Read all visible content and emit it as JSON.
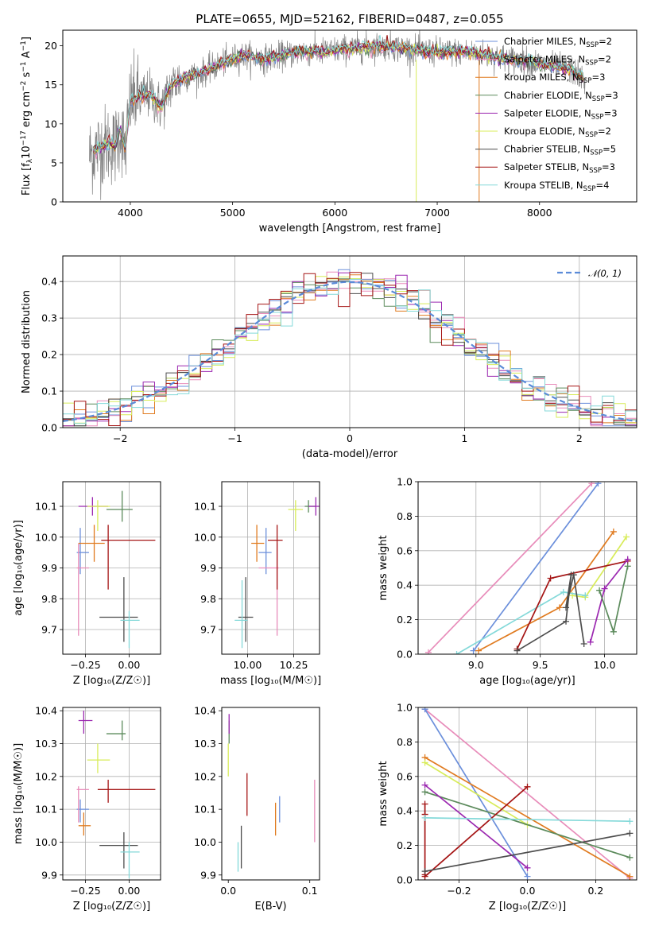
{
  "figure": {
    "title": "PLATE=0655, MJD=52162, FIBERID=0487, z=0.055",
    "colors": {
      "palette": [
        "#6b8fdb",
        "#e88cba",
        "#e07b20",
        "#5b8a5b",
        "#9b27b0",
        "#d8ec5a",
        "#4d4d4d",
        "#a51515",
        "#84d9d9"
      ],
      "spectrum_data": "#808080",
      "grid": "#b0b0b0"
    }
  },
  "chart_data": [
    {
      "id": "spectrum",
      "type": "line",
      "xlabel": "wavelength [Angstrom, rest frame]",
      "ylabel": "Flux [f_λ10^-17 erg cm^-2 s^-1 A^-1]",
      "xlim": [
        3340,
        8950
      ],
      "ylim": [
        0,
        22
      ],
      "xticks": [
        4000,
        5000,
        6000,
        7000,
        8000
      ],
      "yticks": [
        0,
        5,
        10,
        15,
        20
      ],
      "grid": false,
      "legend_position": "top-right",
      "continuum_knots": {
        "x": [
          3600,
          3700,
          3800,
          3850,
          3900,
          3950,
          4000,
          4100,
          4200,
          4300,
          4400,
          4500,
          4700,
          4900,
          5100,
          5300,
          5500,
          5700,
          5900,
          6100,
          6300,
          6500,
          6700,
          6900,
          7100,
          7300,
          7500,
          7700,
          7900,
          8100,
          8300,
          8450
        ],
        "y": [
          6.0,
          7.0,
          7.5,
          7.0,
          9.5,
          6.5,
          13.0,
          13.5,
          13.8,
          12.0,
          15.0,
          15.8,
          16.5,
          17.8,
          18.8,
          18.3,
          18.8,
          19.3,
          19.2,
          19.6,
          19.8,
          20.0,
          19.6,
          19.3,
          19.2,
          19.2,
          18.8,
          18.3,
          18.0,
          17.4,
          17.0,
          15.5
        ]
      },
      "legend": [
        {
          "label": "Chabrier MILES, N",
          "sub": "SSP",
          "tail": "=2",
          "color": "#6b8fdb"
        },
        {
          "label": "Salpeter MILES, N",
          "sub": "SSP",
          "tail": "=2",
          "color": "#e88cba"
        },
        {
          "label": "Kroupa MILES, N",
          "sub": "SSP",
          "tail": "=3",
          "color": "#e07b20"
        },
        {
          "label": "Chabrier ELODIE, N",
          "sub": "SSP",
          "tail": "=3",
          "color": "#5b8a5b"
        },
        {
          "label": "Salpeter ELODIE, N",
          "sub": "SSP",
          "tail": "=3",
          "color": "#9b27b0"
        },
        {
          "label": "Kroupa ELODIE, N",
          "sub": "SSP",
          "tail": "=2",
          "color": "#d8ec5a"
        },
        {
          "label": "Chabrier STELIB, N",
          "sub": "SSP",
          "tail": "=5",
          "color": "#4d4d4d"
        },
        {
          "label": "Salpeter STELIB, N",
          "sub": "SSP",
          "tail": "=3",
          "color": "#a51515"
        },
        {
          "label": "Kroupa STELIB, N",
          "sub": "SSP",
          "tail": "=4",
          "color": "#84d9d9"
        }
      ]
    },
    {
      "id": "residuals",
      "type": "bar",
      "xlabel": "(data-model)/error",
      "ylabel": "Normed distribution",
      "xlim": [
        -2.5,
        2.5
      ],
      "ylim": [
        0,
        0.47
      ],
      "xticks": [
        -2,
        -1,
        0,
        1,
        2
      ],
      "yticks": [
        0.0,
        0.1,
        0.2,
        0.3,
        0.4
      ],
      "grid": true,
      "legend_position": "top-right",
      "bin_width": 0.1,
      "gaussian_label": "𝒩(0, 1)",
      "gaussian_color": "#5b8bd8"
    },
    {
      "id": "age_vs_Z",
      "type": "scatter",
      "xlabel": "Z [log₁₀(Z/Z☉)]",
      "ylabel": "age  [log₁₀(age/yr)]",
      "xlim": [
        -0.38,
        0.18
      ],
      "ylim": [
        9.62,
        10.18
      ],
      "xticks": [
        -0.25,
        0.0
      ],
      "xticklabels": [
        "−0.25",
        "0.00"
      ],
      "yticks": [
        9.7,
        9.8,
        9.9,
        10.0,
        10.1
      ],
      "grid": true,
      "points": [
        {
          "x": -0.28,
          "y": 9.95,
          "ex": [
            -0.3,
            -0.23
          ],
          "ey": [
            9.88,
            10.03
          ],
          "color": "#6b8fdb"
        },
        {
          "x": -0.29,
          "y": 9.9,
          "ex": [
            -0.3,
            -0.23
          ],
          "ey": [
            9.68,
            9.98
          ],
          "color": "#e88cba"
        },
        {
          "x": -0.2,
          "y": 9.98,
          "ex": [
            -0.29,
            -0.14
          ],
          "ey": [
            9.92,
            10.04
          ],
          "color": "#e07b20"
        },
        {
          "x": -0.04,
          "y": 10.09,
          "ex": [
            -0.13,
            0.02
          ],
          "ey": [
            10.05,
            10.15
          ],
          "color": "#5b8a5b"
        },
        {
          "x": -0.21,
          "y": 10.1,
          "ex": [
            -0.29,
            -0.12
          ],
          "ey": [
            10.07,
            10.13
          ],
          "color": "#9b27b0"
        },
        {
          "x": -0.18,
          "y": 10.1,
          "ex": [
            -0.24,
            -0.11
          ],
          "ey": [
            10.02,
            10.12
          ],
          "color": "#d8ec5a"
        },
        {
          "x": -0.03,
          "y": 9.74,
          "ex": [
            -0.17,
            0.05
          ],
          "ey": [
            9.66,
            9.87
          ],
          "color": "#4d4d4d"
        },
        {
          "x": -0.12,
          "y": 9.99,
          "ex": [
            -0.16,
            0.15
          ],
          "ey": [
            9.83,
            10.04
          ],
          "color": "#a51515"
        },
        {
          "x": 0.0,
          "y": 9.73,
          "ex": [
            -0.05,
            0.06
          ],
          "ey": [
            9.64,
            9.76
          ],
          "color": "#84d9d9"
        }
      ]
    },
    {
      "id": "age_vs_mass",
      "type": "scatter",
      "xlabel": "mass [log₁₀(M/M☉)]",
      "ylabel": "",
      "xlim": [
        9.86,
        10.39
      ],
      "ylim": [
        9.62,
        10.18
      ],
      "xticks": [
        10.0,
        10.25
      ],
      "xticklabels": [
        "10.00",
        "10.25"
      ],
      "yticks": [
        9.7,
        9.8,
        9.9,
        10.0,
        10.1
      ],
      "grid": true,
      "points": [
        {
          "x": 10.1,
          "y": 9.95,
          "ex": [
            10.06,
            10.13
          ],
          "ey": [
            9.88,
            10.03
          ],
          "color": "#6b8fdb"
        },
        {
          "x": 10.16,
          "y": 9.9,
          "ex": [
            10.06,
            10.17
          ],
          "ey": [
            9.68,
            9.98
          ],
          "color": "#e88cba"
        },
        {
          "x": 10.05,
          "y": 9.98,
          "ex": [
            10.02,
            10.09
          ],
          "ey": [
            9.92,
            10.04
          ],
          "color": "#e07b20"
        },
        {
          "x": 10.33,
          "y": 10.1,
          "ex": [
            10.31,
            10.37
          ],
          "ey": [
            10.08,
            10.12
          ],
          "color": "#5b8a5b"
        },
        {
          "x": 10.37,
          "y": 10.1,
          "ex": [
            10.33,
            10.4
          ],
          "ey": [
            10.07,
            10.13
          ],
          "color": "#9b27b0"
        },
        {
          "x": 10.26,
          "y": 10.09,
          "ex": [
            10.22,
            10.3
          ],
          "ey": [
            10.02,
            10.12
          ],
          "color": "#d8ec5a"
        },
        {
          "x": 9.99,
          "y": 9.74,
          "ex": [
            9.95,
            10.03
          ],
          "ey": [
            9.66,
            9.87
          ],
          "color": "#4d4d4d"
        },
        {
          "x": 10.16,
          "y": 9.99,
          "ex": [
            10.11,
            10.19
          ],
          "ey": [
            9.83,
            10.04
          ],
          "color": "#a51515"
        },
        {
          "x": 9.97,
          "y": 9.73,
          "ex": [
            9.93,
            10.0
          ],
          "ey": [
            9.64,
            9.86
          ],
          "color": "#84d9d9"
        }
      ]
    },
    {
      "id": "weight_vs_age",
      "type": "line",
      "xlabel": "age  [log₁₀(age/yr)]",
      "ylabel": "mass weight",
      "xlim": [
        8.55,
        10.25
      ],
      "ylim": [
        0,
        1.0
      ],
      "xticks": [
        9.0,
        9.5,
        10.0
      ],
      "yticks": [
        0.0,
        0.2,
        0.4,
        0.6,
        0.8,
        1.0
      ],
      "grid": true,
      "series": [
        {
          "color": "#e88cba",
          "x": [
            8.63,
            9.9
          ],
          "y": [
            0.01,
            0.99
          ]
        },
        {
          "color": "#6b8fdb",
          "x": [
            8.98,
            9.95
          ],
          "y": [
            0.02,
            0.99
          ]
        },
        {
          "color": "#e07b20",
          "x": [
            9.02,
            9.65,
            10.07
          ],
          "y": [
            0.02,
            0.27,
            0.71
          ]
        },
        {
          "color": "#d8ec5a",
          "x": [
            9.75,
            9.85,
            10.17
          ],
          "y": [
            0.34,
            0.33,
            0.68
          ]
        },
        {
          "color": "#84d9d9",
          "x": [
            8.85,
            9.68,
            9.85
          ],
          "y": [
            0.0,
            0.36,
            0.34
          ]
        },
        {
          "color": "#a51515",
          "x": [
            9.32,
            9.58,
            10.18
          ],
          "y": [
            0.03,
            0.44,
            0.54
          ]
        },
        {
          "color": "#4d4d4d",
          "x": [
            9.32,
            9.7,
            9.74,
            9.7,
            9.76,
            9.84
          ],
          "y": [
            0.02,
            0.19,
            0.46,
            0.27,
            0.46,
            0.06
          ]
        },
        {
          "color": "#9b27b0",
          "x": [
            9.89,
            10.0,
            10.18
          ],
          "y": [
            0.07,
            0.38,
            0.55
          ]
        },
        {
          "color": "#5b8a5b",
          "x": [
            9.96,
            10.07,
            10.18
          ],
          "y": [
            0.37,
            0.13,
            0.51
          ]
        }
      ]
    },
    {
      "id": "mass_vs_Z",
      "type": "scatter",
      "xlabel": "Z [log₁₀(Z/Z☉)]",
      "ylabel": "mass [log₁₀(M/M☉)]",
      "xlim": [
        -0.38,
        0.18
      ],
      "ylim": [
        9.885,
        10.41
      ],
      "xticks": [
        -0.25,
        0.0
      ],
      "xticklabels": [
        "−0.25",
        "0.00"
      ],
      "yticks": [
        9.9,
        10.0,
        10.1,
        10.2,
        10.3,
        10.4
      ],
      "grid": true,
      "points": [
        {
          "x": -0.28,
          "y": 10.1,
          "ex": [
            -0.3,
            -0.23
          ],
          "ey": [
            10.06,
            10.13
          ],
          "color": "#6b8fdb"
        },
        {
          "x": -0.29,
          "y": 10.16,
          "ex": [
            -0.3,
            -0.23
          ],
          "ey": [
            10.06,
            10.17
          ],
          "color": "#e88cba"
        },
        {
          "x": -0.26,
          "y": 10.05,
          "ex": [
            -0.29,
            -0.22
          ],
          "ey": [
            10.02,
            10.09
          ],
          "color": "#e07b20"
        },
        {
          "x": -0.04,
          "y": 10.33,
          "ex": [
            -0.13,
            -0.02
          ],
          "ey": [
            10.31,
            10.37
          ],
          "color": "#5b8a5b"
        },
        {
          "x": -0.26,
          "y": 10.37,
          "ex": [
            -0.29,
            -0.21
          ],
          "ey": [
            10.33,
            10.4
          ],
          "color": "#9b27b0"
        },
        {
          "x": -0.18,
          "y": 10.25,
          "ex": [
            -0.24,
            -0.11
          ],
          "ey": [
            10.21,
            10.3
          ],
          "color": "#d8ec5a"
        },
        {
          "x": -0.03,
          "y": 9.99,
          "ex": [
            -0.17,
            0.05
          ],
          "ey": [
            9.92,
            10.03
          ],
          "color": "#4d4d4d"
        },
        {
          "x": -0.12,
          "y": 10.16,
          "ex": [
            -0.18,
            0.15
          ],
          "ey": [
            10.12,
            10.19
          ],
          "color": "#a51515"
        },
        {
          "x": 0.0,
          "y": 9.97,
          "ex": [
            -0.05,
            0.06
          ],
          "ey": [
            9.89,
            10.0
          ],
          "color": "#84d9d9"
        }
      ]
    },
    {
      "id": "mass_vs_ebv",
      "type": "scatter",
      "xlabel": "E(B-V)",
      "ylabel": "",
      "xlim": [
        -0.008,
        0.112
      ],
      "ylim": [
        9.885,
        10.41
      ],
      "xticks": [
        0.0,
        0.1
      ],
      "xticklabels": [
        "0.0",
        "0.1"
      ],
      "yticks": [
        9.9,
        10.0,
        10.1,
        10.2,
        10.3,
        10.4
      ],
      "grid": false,
      "points": [
        {
          "x": 0.063,
          "y": 10.1,
          "ey": [
            10.06,
            10.14
          ],
          "color": "#6b8fdb"
        },
        {
          "x": 0.106,
          "y": 10.1,
          "ey": [
            10.0,
            10.19
          ],
          "color": "#e88cba"
        },
        {
          "x": 0.058,
          "y": 10.08,
          "ey": [
            10.02,
            10.12
          ],
          "color": "#e07b20"
        },
        {
          "x": 0.001,
          "y": 10.34,
          "ey": [
            10.3,
            10.37
          ],
          "color": "#5b8a5b"
        },
        {
          "x": 0.001,
          "y": 10.37,
          "ey": [
            10.33,
            10.39
          ],
          "color": "#9b27b0"
        },
        {
          "x": 0.0,
          "y": 10.25,
          "ey": [
            10.2,
            10.3
          ],
          "color": "#d8ec5a"
        },
        {
          "x": 0.016,
          "y": 9.99,
          "ey": [
            9.92,
            10.05
          ],
          "color": "#4d4d4d"
        },
        {
          "x": 0.023,
          "y": 10.15,
          "ey": [
            10.08,
            10.21
          ],
          "color": "#a51515"
        },
        {
          "x": 0.012,
          "y": 9.96,
          "ey": [
            9.91,
            10.0
          ],
          "color": "#84d9d9"
        }
      ]
    },
    {
      "id": "weight_vs_Z",
      "type": "line",
      "xlabel": "Z [log₁₀(Z/Z☉)]",
      "ylabel": "mass weight",
      "xlim": [
        -0.32,
        0.32
      ],
      "ylim": [
        0,
        1.0
      ],
      "xticks": [
        -0.2,
        0.0,
        0.2
      ],
      "xticklabels": [
        "−0.2",
        "0.0",
        "0.2"
      ],
      "yticks": [
        0.0,
        0.2,
        0.4,
        0.6,
        0.8,
        1.0
      ],
      "grid": true,
      "series": [
        {
          "color": "#e88cba",
          "x": [
            -0.3,
            0.3
          ],
          "y": [
            0.99,
            0.01
          ]
        },
        {
          "color": "#6b8fdb",
          "x": [
            -0.3,
            0.0
          ],
          "y": [
            0.99,
            0.02
          ]
        },
        {
          "color": "#e07b20",
          "x": [
            -0.3,
            0.3
          ],
          "y": [
            0.71,
            0.02
          ]
        },
        {
          "color": "#d8ec5a",
          "x": [
            -0.3,
            0.0
          ],
          "y": [
            0.68,
            0.32
          ]
        },
        {
          "color": "#5b8a5b",
          "x": [
            -0.3,
            0.3
          ],
          "y": [
            0.51,
            0.13
          ]
        },
        {
          "color": "#9b27b0",
          "x": [
            -0.3,
            0.0
          ],
          "y": [
            0.55,
            0.07
          ]
        },
        {
          "color": "#a51515",
          "x": [
            -0.3,
            -0.3,
            -0.3,
            -0.3,
            0.0
          ],
          "y": [
            0.44,
            0.38,
            0.03,
            0.02,
            0.54
          ]
        },
        {
          "color": "#84d9d9",
          "x": [
            -0.3,
            0.3
          ],
          "y": [
            0.36,
            0.34
          ]
        },
        {
          "color": "#4d4d4d",
          "x": [
            -0.3,
            0.3
          ],
          "y": [
            0.05,
            0.27
          ]
        }
      ]
    }
  ]
}
